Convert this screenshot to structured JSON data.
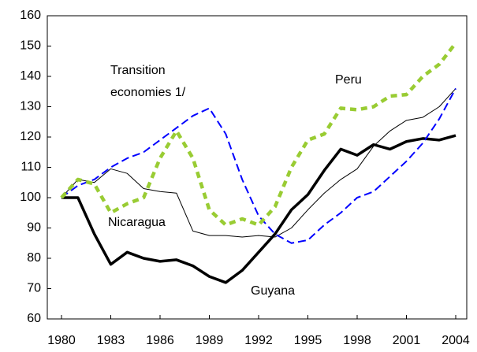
{
  "chart_data": {
    "type": "line",
    "x": [
      1980,
      1981,
      1982,
      1983,
      1984,
      1985,
      1986,
      1987,
      1988,
      1989,
      1990,
      1991,
      1992,
      1993,
      1994,
      1995,
      1996,
      1997,
      1998,
      1999,
      2000,
      2001,
      2002,
      2003,
      2004
    ],
    "xlim": [
      1980,
      2004
    ],
    "xticks": [
      1980,
      1983,
      1986,
      1989,
      1992,
      1995,
      1998,
      2001,
      2004
    ],
    "ylim": [
      60,
      160
    ],
    "yticks": [
      60,
      70,
      80,
      90,
      100,
      110,
      120,
      130,
      140,
      150,
      160
    ],
    "grid": false,
    "series": [
      {
        "name": "Guyana",
        "color": "#000000",
        "style": "solid-thick",
        "values": [
          100,
          100,
          88,
          78,
          82,
          80,
          79,
          79.5,
          77.5,
          74,
          72,
          76,
          82,
          88,
          96,
          101,
          109,
          116,
          114,
          117.5,
          116,
          118.5,
          119.5,
          119,
          120.5
        ]
      },
      {
        "name": "Nicaragua",
        "color": "#000000",
        "style": "solid-thin",
        "values": [
          100,
          106,
          105,
          109.5,
          108,
          103,
          102,
          101.5,
          89,
          87.5,
          87.5,
          87,
          87.5,
          87,
          90,
          96,
          101.5,
          106,
          109.5,
          117,
          122,
          125.5,
          126.5,
          130,
          136
        ]
      },
      {
        "name": "Transition economies 1/",
        "color": "#0000ff",
        "style": "dashed",
        "values": [
          100,
          104,
          106,
          110,
          113,
          115,
          119,
          123,
          127,
          129.5,
          121,
          106,
          94,
          88,
          85,
          86,
          91,
          95,
          100,
          102,
          107,
          112,
          118,
          126,
          136
        ]
      },
      {
        "name": "Peru",
        "color": "#99cc33",
        "style": "dotted-thick",
        "values": [
          100,
          106,
          104.5,
          95,
          98,
          100,
          113,
          122,
          113,
          96,
          91,
          93,
          91,
          97,
          110,
          119,
          121,
          129.5,
          129,
          130,
          133.5,
          134,
          140,
          144,
          151
        ]
      }
    ]
  }
}
